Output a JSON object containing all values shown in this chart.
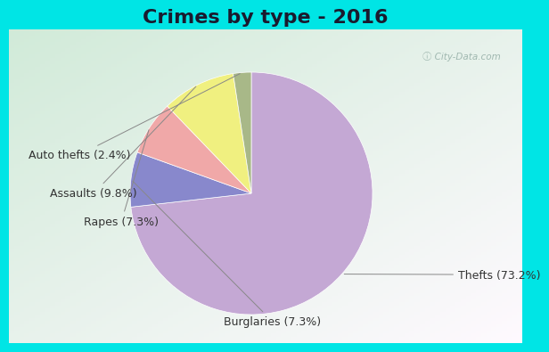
{
  "title": "Crimes by type - 2016",
  "labels": [
    "Thefts",
    "Burglaries",
    "Rapes",
    "Assaults",
    "Auto thefts"
  ],
  "values": [
    73.2,
    7.3,
    7.3,
    9.8,
    2.4
  ],
  "colors": [
    "#c4a8d4",
    "#8888cc",
    "#f0a8a8",
    "#f0f080",
    "#a8b888"
  ],
  "label_texts": [
    "Thefts (73.2%)",
    "Burglaries (7.3%)",
    "Rapes (7.3%)",
    "Assaults (9.8%)",
    "Auto thefts (2.4%)"
  ],
  "cyan_color": "#00e5e5",
  "bg_color_topleft": "#c8e8d0",
  "bg_color_bottomright": "#e8f0f8",
  "title_fontsize": 16,
  "label_fontsize": 9,
  "startangle": 90
}
